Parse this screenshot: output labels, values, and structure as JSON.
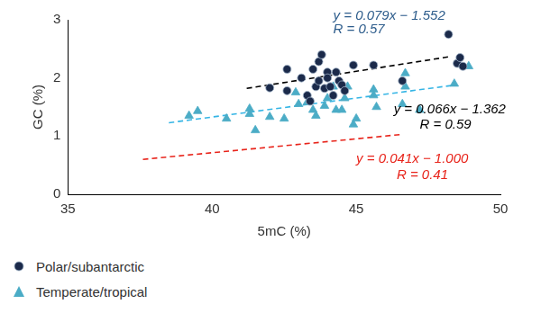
{
  "chart_data": {
    "type": "scatter",
    "x_label": "5mC (%)",
    "y_label": "GC (%)",
    "xlim": [
      35,
      50
    ],
    "xticks": [
      35,
      40,
      45,
      50
    ],
    "ylim": [
      0,
      3
    ],
    "yticks": [
      0,
      1,
      2,
      3
    ],
    "grid": false,
    "legend": "bottom-left",
    "series": [
      {
        "name": "Polar/subantarctic",
        "color": "#1b2a4a",
        "marker": "circle",
        "x": [
          42.0,
          42.6,
          42.6,
          43.1,
          43.3,
          43.5,
          43.7,
          43.8,
          43.6,
          43.7,
          43.9,
          44.0,
          44.1,
          44.2,
          44.3,
          44.4,
          44.5,
          44.6,
          44.9,
          45.6,
          46.6,
          48.2,
          48.5,
          48.6,
          48.7,
          44.0,
          43.4
        ],
        "values": [
          1.83,
          2.15,
          1.78,
          2.0,
          1.7,
          2.15,
          2.28,
          2.4,
          1.85,
          1.95,
          1.82,
          2.1,
          1.85,
          1.7,
          2.1,
          1.95,
          1.88,
          1.78,
          2.22,
          2.22,
          1.95,
          2.75,
          2.25,
          2.35,
          2.2,
          2.0,
          1.6
        ]
      },
      {
        "name": "Temperate/tropical",
        "color": "#4bacc6",
        "marker": "triangle",
        "x": [
          39.2,
          39.5,
          40.5,
          41.3,
          41.3,
          41.5,
          42.0,
          42.5,
          42.9,
          43.0,
          43.3,
          43.5,
          43.6,
          43.9,
          44.0,
          44.3,
          44.5,
          44.6,
          44.9,
          45.0,
          45.6,
          45.6,
          45.7,
          46.6,
          46.7,
          46.7,
          47.2,
          48.4,
          48.9,
          44.2,
          44.7
        ],
        "values": [
          1.35,
          1.43,
          1.3,
          1.47,
          1.38,
          1.1,
          1.33,
          1.3,
          1.75,
          1.55,
          1.58,
          1.45,
          1.35,
          1.52,
          1.65,
          1.45,
          1.45,
          1.65,
          1.2,
          1.3,
          1.8,
          1.7,
          1.5,
          1.55,
          2.08,
          1.85,
          1.45,
          1.9,
          2.2,
          1.85,
          1.85
        ]
      }
    ],
    "trend_lines": [
      {
        "color": "#000000",
        "line_style": "dashed",
        "x": [
          41.2,
          48.3
        ],
        "values": [
          1.82,
          2.37
        ]
      },
      {
        "color": "#35b5e5",
        "line_style": "dashed",
        "x": [
          38.5,
          48.3
        ],
        "values": [
          1.23,
          1.87
        ]
      },
      {
        "color": "#e8241b",
        "line_style": "dashed",
        "x": [
          37.6,
          46.6
        ],
        "values": [
          0.6,
          1.03
        ]
      }
    ],
    "annotations": [
      {
        "text": "y = 0.079x − 1.552",
        "color": "#2e5d8c"
      },
      {
        "text": "R = 0.57",
        "color": "#2e5d8c"
      },
      {
        "text": "y = 0.066x − 1.362",
        "color": "#000000"
      },
      {
        "text": "R = 0.59",
        "color": "#000000"
      },
      {
        "text": "y = 0.041x − 1.000",
        "color": "#e8241b"
      },
      {
        "text": "R = 0.41",
        "color": "#e8241b"
      }
    ]
  }
}
